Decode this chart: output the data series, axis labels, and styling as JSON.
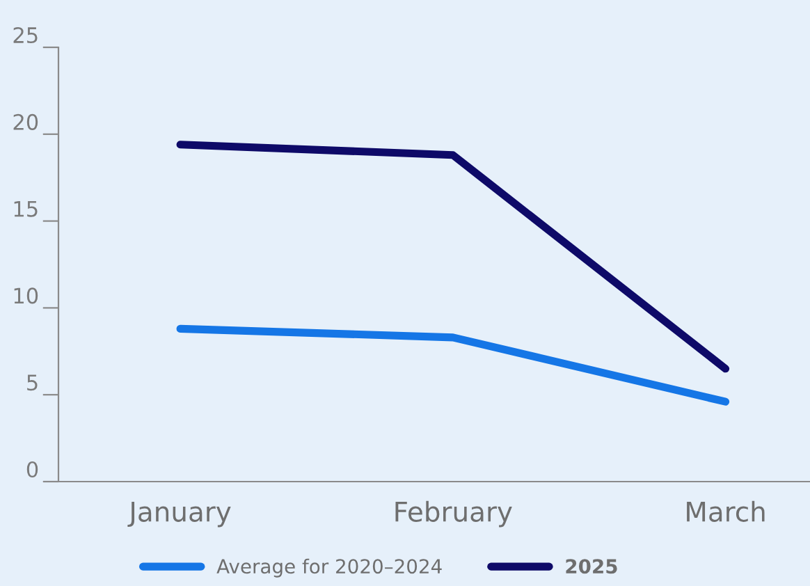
{
  "chart_data": {
    "type": "line",
    "categories": [
      "January",
      "February",
      "March"
    ],
    "series": [
      {
        "name": "Average for 2020–2024",
        "color": "#1576e6",
        "values": [
          8.8,
          8.3,
          4.6
        ]
      },
      {
        "name": "2025",
        "color": "#0e0a68",
        "values": [
          19.4,
          18.8,
          6.5
        ]
      }
    ],
    "ylim": [
      0,
      25
    ],
    "yticks": [
      0,
      5,
      10,
      15,
      20,
      25
    ],
    "grid": false,
    "legend": "bottom",
    "marker": "none",
    "line_style": "solid"
  }
}
